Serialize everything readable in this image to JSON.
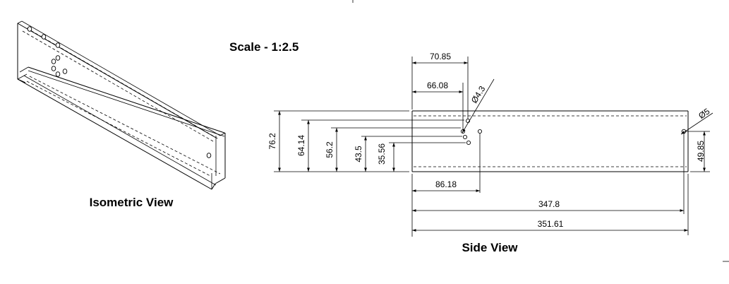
{
  "titles": {
    "scale": "Scale - 1:2.5",
    "isometric": "Isometric View",
    "side": "Side View"
  },
  "dimensions": {
    "d70_85": "70.85",
    "d66_08": "66.08",
    "d4_3": "Ø4.3",
    "d5": "Ø5",
    "d76_2": "76.2",
    "d64_14": "64.14",
    "d56_2": "56.2",
    "d43_5": "43.5",
    "d35_56": "35.56",
    "d86_18": "86.18",
    "d347_8": "347.8",
    "d351_61": "351.61",
    "d49_85": "49.85"
  }
}
